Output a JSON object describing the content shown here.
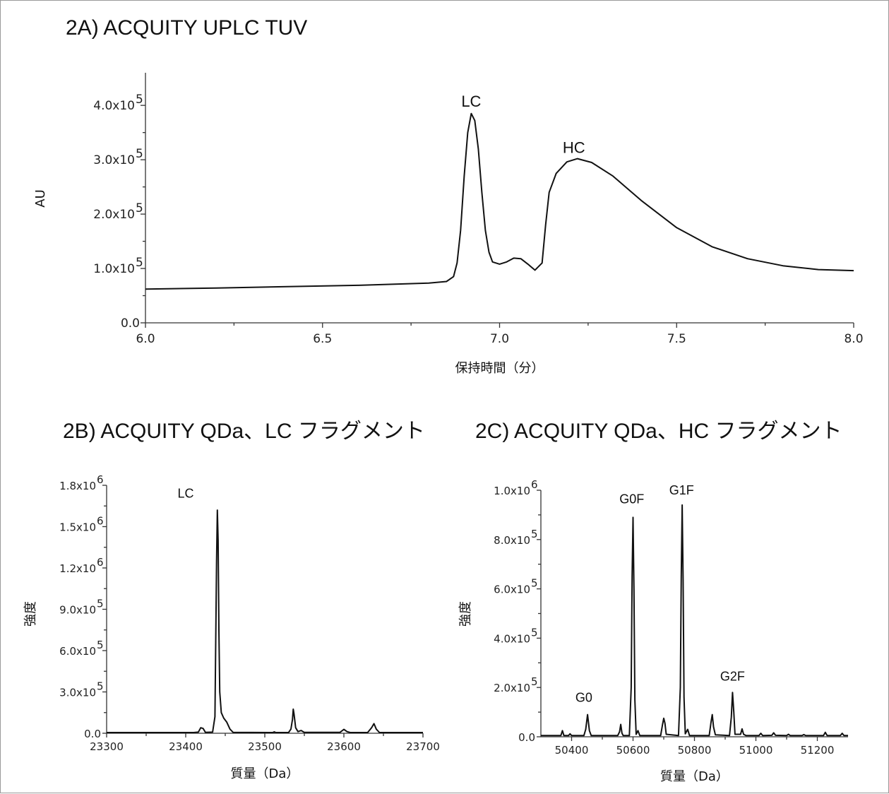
{
  "chart_data": [
    {
      "id": "2A",
      "type": "line",
      "title": "2A) ACQUITY UPLC TUV",
      "xlabel": "保持時間（分）",
      "ylabel": "AU",
      "xlim": [
        6.0,
        8.0
      ],
      "ylim": [
        0,
        460000
      ],
      "xticks": [
        6.0,
        6.5,
        7.0,
        7.5,
        8.0
      ],
      "xtick_labels": [
        "6.0",
        "6.5",
        "7.0",
        "7.5",
        "8.0"
      ],
      "yticks": [
        0,
        100000,
        200000,
        300000,
        400000
      ],
      "ytick_mantissa": [
        "0.0",
        "1.0x10",
        "2.0x10",
        "3.0x10",
        "4.0x10"
      ],
      "ytick_exponent": [
        "",
        "5",
        "5",
        "5",
        "5"
      ],
      "annotations": [
        {
          "text": "LC",
          "x": 6.92,
          "y": 390000
        },
        {
          "text": "HC",
          "x": 7.21,
          "y": 305000
        }
      ],
      "series": [
        {
          "points": [
            [
              6.0,
              62000
            ],
            [
              6.2,
              64000
            ],
            [
              6.4,
              66500
            ],
            [
              6.6,
              69000
            ],
            [
              6.8,
              73000
            ],
            [
              6.85,
              76000
            ],
            [
              6.87,
              85000
            ],
            [
              6.88,
              110000
            ],
            [
              6.89,
              170000
            ],
            [
              6.9,
              270000
            ],
            [
              6.91,
              350000
            ],
            [
              6.92,
              385000
            ],
            [
              6.93,
              372000
            ],
            [
              6.94,
              320000
            ],
            [
              6.95,
              240000
            ],
            [
              6.96,
              170000
            ],
            [
              6.97,
              130000
            ],
            [
              6.98,
              112000
            ],
            [
              7.0,
              108000
            ],
            [
              7.02,
              112000
            ],
            [
              7.04,
              119000
            ],
            [
              7.06,
              118000
            ],
            [
              7.08,
              108000
            ],
            [
              7.1,
              97000
            ],
            [
              7.12,
              110000
            ],
            [
              7.13,
              180000
            ],
            [
              7.14,
              240000
            ],
            [
              7.16,
              275000
            ],
            [
              7.19,
              296000
            ],
            [
              7.22,
              302000
            ],
            [
              7.26,
              295000
            ],
            [
              7.32,
              270000
            ],
            [
              7.4,
              225000
            ],
            [
              7.5,
              175000
            ],
            [
              7.6,
              140000
            ],
            [
              7.7,
              118000
            ],
            [
              7.8,
              105000
            ],
            [
              7.9,
              98000
            ],
            [
              8.0,
              96000
            ]
          ]
        }
      ]
    },
    {
      "id": "2B",
      "type": "line",
      "title": "2B) ACQUITY QDa、LC フラグメント",
      "xlabel": "質量（Da）",
      "ylabel": "強度",
      "xlim": [
        23300,
        23700
      ],
      "ylim": [
        0,
        1800000
      ],
      "xticks": [
        23300,
        23400,
        23500,
        23600,
        23700
      ],
      "xtick_labels": [
        "23300",
        "23400",
        "23500",
        "23600",
        "23700"
      ],
      "yticks": [
        0,
        300000,
        600000,
        900000,
        1200000,
        1500000,
        1800000
      ],
      "ytick_mantissa": [
        "0.0",
        "3.0x10",
        "6.0x10",
        "9.0x10",
        "1.2x10",
        "1.5x10",
        "1.8x10"
      ],
      "ytick_exponent": [
        "",
        "5",
        "5",
        "5",
        "6",
        "6",
        "6"
      ],
      "annotations": [
        {
          "text": "LC",
          "x": 23400,
          "y": 1680000
        }
      ],
      "series": [
        {
          "points": [
            [
              23300,
              5000
            ],
            [
              23410,
              5000
            ],
            [
              23416,
              8000
            ],
            [
              23419,
              40000
            ],
            [
              23422,
              35000
            ],
            [
              23425,
              6000
            ],
            [
              23434,
              8000
            ],
            [
              23437,
              120000
            ],
            [
              23439,
              1250000
            ],
            [
              23440,
              1620000
            ],
            [
              23441,
              1400000
            ],
            [
              23442,
              750000
            ],
            [
              23443,
              300000
            ],
            [
              23445,
              150000
            ],
            [
              23448,
              110000
            ],
            [
              23452,
              80000
            ],
            [
              23456,
              30000
            ],
            [
              23460,
              6000
            ],
            [
              23510,
              5000
            ],
            [
              23512,
              10000
            ],
            [
              23514,
              5000
            ],
            [
              23530,
              5000
            ],
            [
              23533,
              30000
            ],
            [
              23535,
              100000
            ],
            [
              23536,
              175000
            ],
            [
              23537,
              140000
            ],
            [
              23539,
              40000
            ],
            [
              23542,
              12000
            ],
            [
              23546,
              20000
            ],
            [
              23550,
              6000
            ],
            [
              23595,
              6000
            ],
            [
              23600,
              28000
            ],
            [
              23604,
              12000
            ],
            [
              23608,
              5000
            ],
            [
              23630,
              5000
            ],
            [
              23635,
              40000
            ],
            [
              23638,
              70000
            ],
            [
              23641,
              30000
            ],
            [
              23645,
              5000
            ],
            [
              23700,
              5000
            ]
          ]
        }
      ]
    },
    {
      "id": "2C",
      "type": "line",
      "title": "2C) ACQUITY QDa、HC フラグメント",
      "xlabel": "質量（Da）",
      "ylabel": "強度",
      "xlim": [
        50300,
        51300
      ],
      "ylim": [
        0,
        1000000
      ],
      "xticks": [
        50400,
        50600,
        50800,
        51000,
        51200
      ],
      "xtick_labels": [
        "50400",
        "50600",
        "50800",
        "51000",
        "51200"
      ],
      "yticks": [
        0,
        200000,
        400000,
        600000,
        800000,
        1000000
      ],
      "ytick_mantissa": [
        "0.0",
        "2.0x10",
        "4.0x10",
        "6.0x10",
        "8.0x10",
        "1.0x10"
      ],
      "ytick_exponent": [
        "",
        "5",
        "5",
        "5",
        "5",
        "6"
      ],
      "annotations": [
        {
          "text": "G0",
          "x": 50440,
          "y": 125000
        },
        {
          "text": "G0F",
          "x": 50596,
          "y": 930000
        },
        {
          "text": "G1F",
          "x": 50758,
          "y": 965000
        },
        {
          "text": "G2F",
          "x": 50924,
          "y": 210000
        }
      ],
      "series": [
        {
          "points": [
            [
              50300,
              5000
            ],
            [
              50365,
              5000
            ],
            [
              50370,
              25000
            ],
            [
              50375,
              5000
            ],
            [
              50390,
              5000
            ],
            [
              50395,
              12000
            ],
            [
              50400,
              5000
            ],
            [
              50440,
              5000
            ],
            [
              50446,
              30000
            ],
            [
              50452,
              90000
            ],
            [
              50458,
              25000
            ],
            [
              50464,
              5000
            ],
            [
              50550,
              5000
            ],
            [
              50556,
              20000
            ],
            [
              50560,
              50000
            ],
            [
              50564,
              15000
            ],
            [
              50568,
              5000
            ],
            [
              50588,
              5000
            ],
            [
              50594,
              200000
            ],
            [
              50597,
              650000
            ],
            [
              50600,
              890000
            ],
            [
              50603,
              600000
            ],
            [
              50606,
              150000
            ],
            [
              50610,
              10000
            ],
            [
              50616,
              25000
            ],
            [
              50622,
              5000
            ],
            [
              50690,
              5000
            ],
            [
              50696,
              50000
            ],
            [
              50700,
              75000
            ],
            [
              50704,
              55000
            ],
            [
              50708,
              10000
            ],
            [
              50748,
              5000
            ],
            [
              50754,
              200000
            ],
            [
              50757,
              650000
            ],
            [
              50760,
              940000
            ],
            [
              50763,
              640000
            ],
            [
              50766,
              160000
            ],
            [
              50770,
              12000
            ],
            [
              50778,
              30000
            ],
            [
              50784,
              5000
            ],
            [
              50848,
              5000
            ],
            [
              50854,
              60000
            ],
            [
              50858,
              90000
            ],
            [
              50862,
              40000
            ],
            [
              50868,
              8000
            ],
            [
              50914,
              5000
            ],
            [
              50920,
              80000
            ],
            [
              50924,
              180000
            ],
            [
              50928,
              100000
            ],
            [
              50932,
              10000
            ],
            [
              50950,
              10000
            ],
            [
              50955,
              32000
            ],
            [
              50960,
              10000
            ],
            [
              50968,
              5000
            ],
            [
              51010,
              5000
            ],
            [
              51016,
              14000
            ],
            [
              51022,
              5000
            ],
            [
              51052,
              6000
            ],
            [
              51058,
              16000
            ],
            [
              51064,
              6000
            ],
            [
              51100,
              5000
            ],
            [
              51106,
              10000
            ],
            [
              51112,
              5000
            ],
            [
              51150,
              5000
            ],
            [
              51156,
              9000
            ],
            [
              51162,
              5000
            ],
            [
              51220,
              5000
            ],
            [
              51226,
              18000
            ],
            [
              51232,
              5000
            ],
            [
              51275,
              5000
            ],
            [
              51281,
              14000
            ],
            [
              51287,
              5000
            ],
            [
              51300,
              5000
            ]
          ]
        }
      ]
    }
  ]
}
